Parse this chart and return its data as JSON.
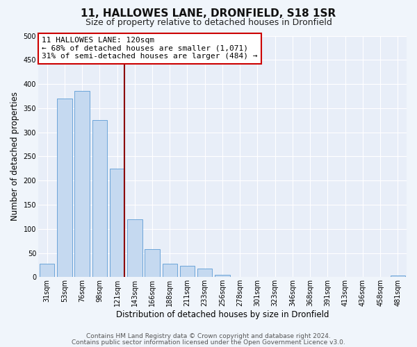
{
  "title": "11, HALLOWES LANE, DRONFIELD, S18 1SR",
  "subtitle": "Size of property relative to detached houses in Dronfield",
  "xlabel": "Distribution of detached houses by size in Dronfield",
  "ylabel": "Number of detached properties",
  "bar_labels": [
    "31sqm",
    "53sqm",
    "76sqm",
    "98sqm",
    "121sqm",
    "143sqm",
    "166sqm",
    "188sqm",
    "211sqm",
    "233sqm",
    "256sqm",
    "278sqm",
    "301sqm",
    "323sqm",
    "346sqm",
    "368sqm",
    "391sqm",
    "413sqm",
    "436sqm",
    "458sqm",
    "481sqm"
  ],
  "bar_values": [
    28,
    370,
    385,
    325,
    225,
    120,
    58,
    28,
    23,
    18,
    5,
    1,
    0,
    0,
    0,
    1,
    0,
    0,
    0,
    0,
    3
  ],
  "bar_color": "#c5d9f0",
  "bar_edge_color": "#5b9bd5",
  "vline_x_index": 4,
  "vline_color": "#8b0000",
  "annotation_line1": "11 HALLOWES LANE: 120sqm",
  "annotation_line2": "← 68% of detached houses are smaller (1,071)",
  "annotation_line3": "31% of semi-detached houses are larger (484) →",
  "annotation_box_color": "#ffffff",
  "annotation_box_edge_color": "#cc0000",
  "ylim": [
    0,
    500
  ],
  "yticks": [
    0,
    50,
    100,
    150,
    200,
    250,
    300,
    350,
    400,
    450,
    500
  ],
  "footer_line1": "Contains HM Land Registry data © Crown copyright and database right 2024.",
  "footer_line2": "Contains public sector information licensed under the Open Government Licence v3.0.",
  "bg_color": "#f0f5fb",
  "plot_bg_color": "#e8eef8",
  "grid_color": "#ffffff",
  "title_fontsize": 11,
  "subtitle_fontsize": 9,
  "axis_label_fontsize": 8.5,
  "tick_fontsize": 7,
  "annotation_fontsize": 8,
  "footer_fontsize": 6.5
}
